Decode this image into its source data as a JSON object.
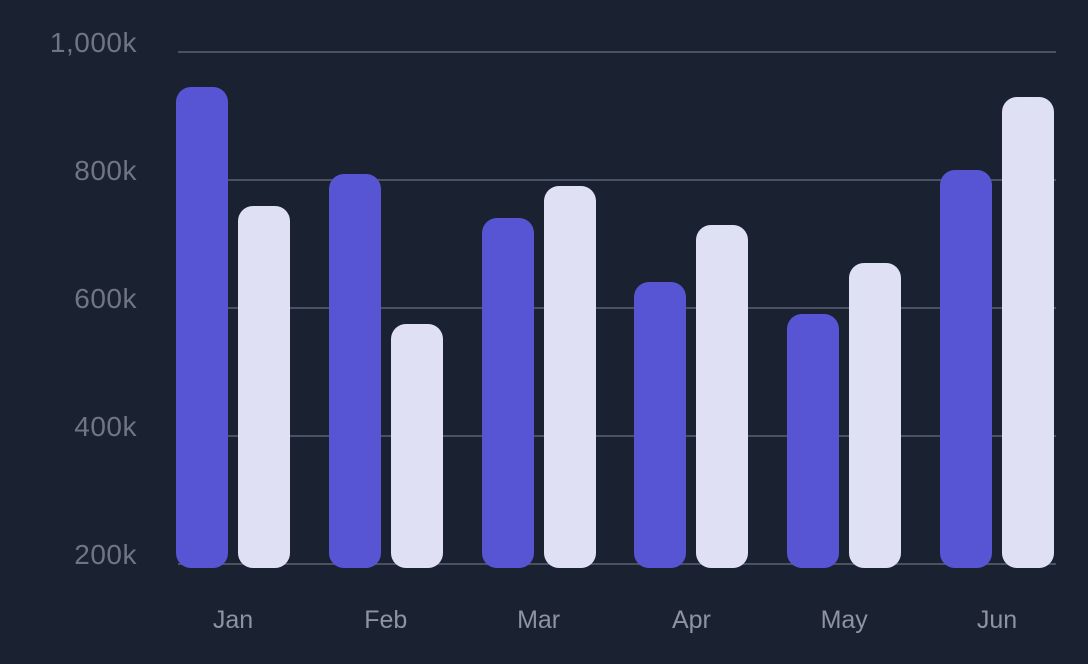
{
  "chart_data": {
    "type": "bar",
    "title": "",
    "categories": [
      "Jan",
      "Feb",
      "Mar",
      "Apr",
      "May",
      "Jun"
    ],
    "series": [
      {
        "name": "purple",
        "color": "#5855D5",
        "values": [
          945,
          810,
          740,
          640,
          590,
          815
        ]
      },
      {
        "name": "lavender",
        "color": "#E0E0F5",
        "values": [
          760,
          575,
          790,
          730,
          670,
          930
        ]
      }
    ],
    "value_unit": "k",
    "y_ticks": [
      {
        "value": 1000,
        "label": "1,000k"
      },
      {
        "value": 800,
        "label": "800k"
      },
      {
        "value": 600,
        "label": "600k"
      },
      {
        "value": 400,
        "label": "400k"
      },
      {
        "value": 200,
        "label": "200k"
      }
    ],
    "ylim": [
      200,
      1000
    ],
    "grid": true,
    "legend": false
  },
  "colors": {
    "background": "#1A2232",
    "gridline": "#4A5162",
    "y_label": "#6F7584",
    "x_label": "#8D93A0"
  }
}
